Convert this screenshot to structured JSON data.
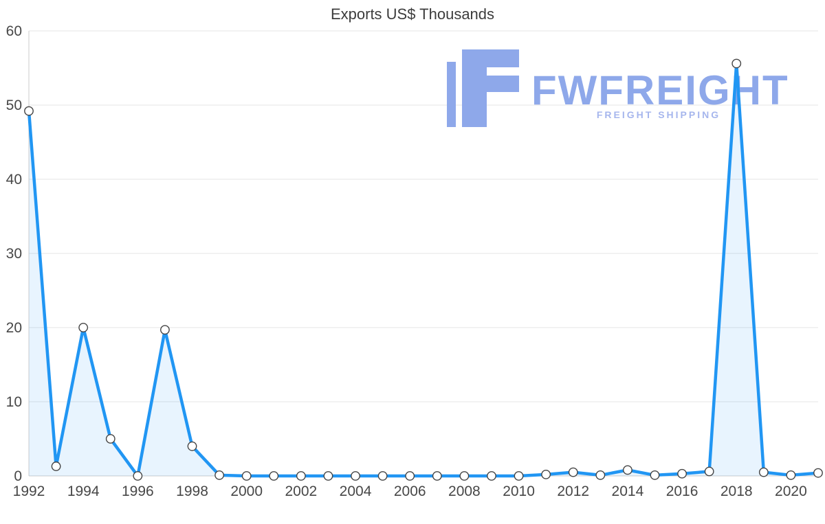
{
  "chart_data": {
    "type": "area",
    "title": "Exports US$ Thousands",
    "xlabel": "",
    "ylabel": "",
    "x": [
      1992,
      1993,
      1994,
      1995,
      1996,
      1997,
      1998,
      1999,
      2000,
      2001,
      2002,
      2003,
      2004,
      2005,
      2006,
      2007,
      2008,
      2009,
      2010,
      2011,
      2012,
      2013,
      2014,
      2015,
      2016,
      2017,
      2018,
      2019,
      2020,
      2021
    ],
    "values": [
      49.2,
      1.3,
      20.0,
      5.0,
      0.0,
      19.7,
      4.0,
      0.1,
      0.0,
      0.0,
      0.0,
      0.0,
      0.0,
      0.0,
      0.0,
      0.0,
      0.0,
      0.0,
      0.0,
      0.2,
      0.5,
      0.1,
      0.8,
      0.1,
      0.3,
      0.6,
      55.6,
      0.5,
      0.1,
      0.4
    ],
    "xtick_labels": [
      "1992",
      "1994",
      "1996",
      "1998",
      "2000",
      "2002",
      "2004",
      "2006",
      "2008",
      "2010",
      "2012",
      "2014",
      "2016",
      "2018",
      "2020"
    ],
    "ytick_values": [
      0,
      10,
      20,
      30,
      40,
      50,
      60
    ],
    "ylim": [
      0,
      60
    ],
    "grid": true,
    "legend": false,
    "line_color": "#2196f3",
    "area_color": "rgba(33,150,243,0.10)",
    "marker_fill": "#ffffff",
    "marker_stroke": "#444444",
    "grid_color": "#e5e5e5",
    "axis_color": "#cccccc",
    "label_color": "#474747"
  },
  "logo": {
    "brand": "FWFREIGHT",
    "tagline": "FREIGHT SHIPPING",
    "color": "#8ea8ea",
    "tagline_color": "#a6b6ed"
  }
}
